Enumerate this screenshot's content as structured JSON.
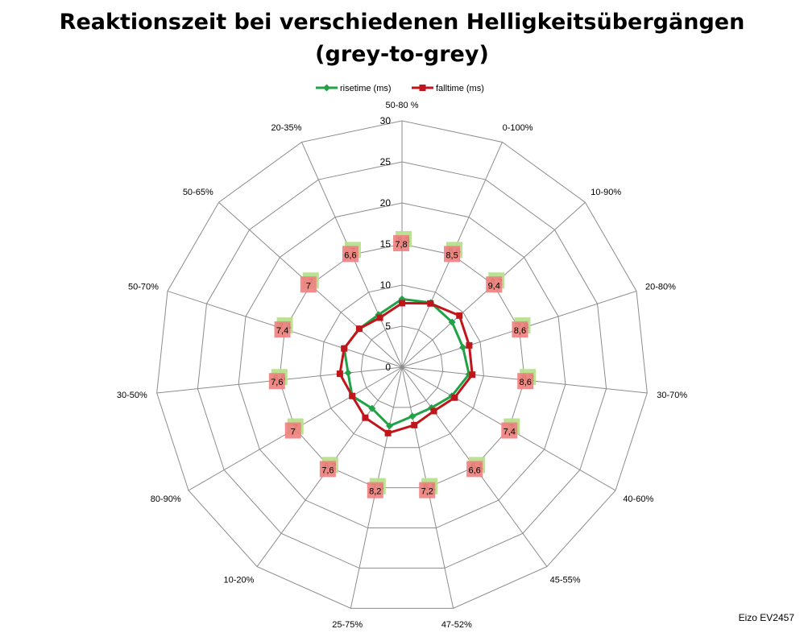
{
  "chart_data": {
    "type": "radar",
    "title_line1": "Reaktionszeit bei verschiedenen Helligkeitsübergängen",
    "title_line2": "(grey-to-grey)",
    "categories": [
      "50-80 %",
      "0-100%",
      "10-90%",
      "20-80%",
      "30-70%",
      "40-60%",
      "45-55%",
      "47-52%",
      "25-75%",
      "10-20%",
      "80-90%",
      "30-50%",
      "50-70%",
      "50-65%",
      "20-35%"
    ],
    "rmax": 30,
    "ticks": [
      0,
      5,
      10,
      15,
      20,
      25,
      30
    ],
    "grid": true,
    "legend": "top",
    "series": [
      {
        "name": "risetime (ms)",
        "color": "#1FA346",
        "label_bg": "#B7E08C",
        "marker": "diamond",
        "values": [
          8.3,
          8.6,
          8.2,
          7.8,
          8.2,
          7.0,
          6.1,
          6.1,
          7.3,
          6.2,
          7.0,
          6.6,
          7.4,
          7.0,
          7.0
        ],
        "labels": [
          "8,3",
          "8,6",
          "8,2",
          "7,8",
          "8,2",
          "7",
          "6,1",
          "6,1",
          "7,3",
          "6,2",
          "7",
          "6,6",
          "7,4",
          "7",
          "7"
        ]
      },
      {
        "name": "falltime (ms)",
        "color": "#C0161B",
        "label_bg": "#F08080",
        "marker": "square",
        "values": [
          7.8,
          8.5,
          9.4,
          8.6,
          8.6,
          7.4,
          6.6,
          7.2,
          8.2,
          7.6,
          7.0,
          7.6,
          7.4,
          7.0,
          6.6
        ],
        "labels": [
          "7,8",
          "8,5",
          "9,4",
          "8,6",
          "8,6",
          "7,4",
          "6,6",
          "7,2",
          "8,2",
          "7,6",
          "7",
          "7,6",
          "7,4",
          "7",
          "6,6"
        ]
      }
    ]
  },
  "footer": "Eizo EV2457"
}
